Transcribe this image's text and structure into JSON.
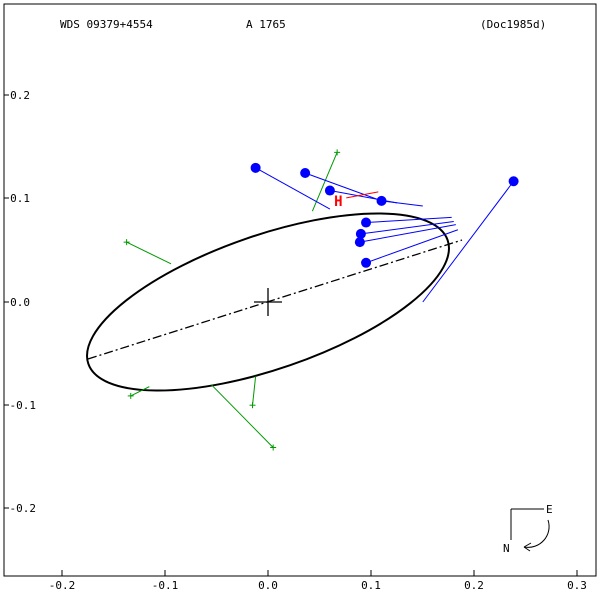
{
  "header": {
    "wds_id": "WDS 09379+4554",
    "discoverer": "A  1765",
    "reference": "(Doc1985d)"
  },
  "axes": {
    "x_ticks": [
      "-0.2",
      "-0.1",
      "0.0",
      "0.1",
      "0.2",
      "0.3"
    ],
    "y_ticks": [
      "0.2",
      "0.1",
      "0.0",
      "-0.1",
      "-0.2"
    ]
  },
  "compass": {
    "east": "E",
    "north": "N"
  },
  "colors": {
    "orbit": "#000000",
    "measures": "#0000ff",
    "residuals_other": "#009900",
    "hipparcos": "#ff0000"
  },
  "hipparcos_marker": "H",
  "chart_data": {
    "type": "scatter",
    "title": "",
    "xlim": [
      -0.2,
      0.3
    ],
    "ylim": [
      -0.2,
      0.2
    ],
    "orbit_ellipse": {
      "center": [
        0.0,
        0.0
      ],
      "line_of_apsides": [
        [
          -0.175,
          -0.056
        ],
        [
          0.188,
          0.06
        ]
      ]
    },
    "measures_filled": [
      {
        "observed": [
          -0.012,
          0.13
        ],
        "predicted": [
          0.06,
          0.09
        ]
      },
      {
        "observed": [
          0.036,
          0.125
        ],
        "predicted": [
          0.11,
          0.098
        ]
      },
      {
        "observed": [
          0.06,
          0.108
        ],
        "predicted": [
          0.125,
          0.096
        ]
      },
      {
        "observed": [
          0.11,
          0.098
        ],
        "predicted": [
          0.15,
          0.093
        ]
      },
      {
        "observed": [
          0.095,
          0.077
        ],
        "predicted": [
          0.178,
          0.082
        ]
      },
      {
        "observed": [
          0.09,
          0.066
        ],
        "predicted": [
          0.18,
          0.078
        ]
      },
      {
        "observed": [
          0.089,
          0.058
        ],
        "predicted": [
          0.182,
          0.075
        ]
      },
      {
        "observed": [
          0.095,
          0.038
        ],
        "predicted": [
          0.184,
          0.07
        ]
      },
      {
        "observed": [
          0.238,
          0.117
        ],
        "predicted": [
          0.15,
          0.0
        ]
      }
    ],
    "measures_other": [
      {
        "observed": [
          0.067,
          0.145
        ],
        "predicted": [
          0.043,
          0.088
        ]
      },
      {
        "observed": [
          -0.137,
          0.058
        ],
        "predicted": [
          -0.094,
          0.037
        ]
      },
      {
        "observed": [
          -0.133,
          -0.091
        ],
        "predicted": [
          -0.115,
          -0.082
        ]
      },
      {
        "observed": [
          -0.015,
          -0.1
        ],
        "predicted": [
          -0.012,
          -0.072
        ]
      },
      {
        "observed": [
          0.005,
          -0.141
        ],
        "predicted": [
          -0.055,
          -0.08
        ]
      }
    ],
    "hipparcos_point": {
      "observed": [
        0.072,
        0.099
      ]
    }
  }
}
